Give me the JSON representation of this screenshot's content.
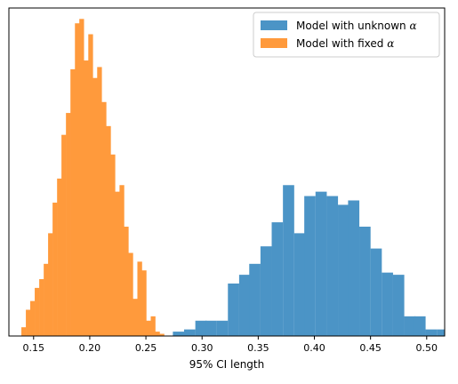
{
  "chart_data": {
    "type": "bar",
    "title": "",
    "xlabel": "95% CI length",
    "ylabel": "",
    "xlim": [
      0.128,
      0.516
    ],
    "ylim": [
      0,
      150
    ],
    "xticks": [
      0.15,
      0.2,
      0.25,
      0.3,
      0.35,
      0.4,
      0.45,
      0.5
    ],
    "xtick_labels": [
      "0.15",
      "0.20",
      "0.25",
      "0.30",
      "0.35",
      "0.40",
      "0.45",
      "0.50"
    ],
    "yticks_visible": false,
    "grid": false,
    "legend": {
      "placement": "top-right",
      "entries": [
        {
          "label_text": "Model with unknown ",
          "label_symbol": "α",
          "color": "#4b94c6"
        },
        {
          "label_text": "Model with fixed ",
          "label_symbol": "α",
          "color": "#ff9a3c"
        }
      ]
    },
    "series": [
      {
        "color": "#4b94c6",
        "bin_width": 0.0098,
        "bins": [
          {
            "x0": 0.274,
            "count": 2
          },
          {
            "x0": 0.284,
            "count": 3
          },
          {
            "x0": 0.294,
            "count": 7
          },
          {
            "x0": 0.303,
            "count": 7
          },
          {
            "x0": 0.313,
            "count": 7
          },
          {
            "x0": 0.323,
            "count": 24
          },
          {
            "x0": 0.333,
            "count": 28
          },
          {
            "x0": 0.342,
            "count": 33
          },
          {
            "x0": 0.352,
            "count": 41
          },
          {
            "x0": 0.362,
            "count": 52
          },
          {
            "x0": 0.372,
            "count": 69
          },
          {
            "x0": 0.382,
            "count": 47
          },
          {
            "x0": 0.391,
            "count": 64
          },
          {
            "x0": 0.401,
            "count": 66
          },
          {
            "x0": 0.411,
            "count": 64
          },
          {
            "x0": 0.421,
            "count": 60
          },
          {
            "x0": 0.43,
            "count": 62
          },
          {
            "x0": 0.44,
            "count": 50
          },
          {
            "x0": 0.45,
            "count": 40
          },
          {
            "x0": 0.46,
            "count": 29
          },
          {
            "x0": 0.47,
            "count": 28
          },
          {
            "x0": 0.48,
            "count": 9
          },
          {
            "x0": 0.489,
            "count": 9
          },
          {
            "x0": 0.499,
            "count": 3
          },
          {
            "x0": 0.509,
            "count": 3
          },
          {
            "x0": 0.519,
            "count": 1
          }
        ]
      },
      {
        "color": "#ff9a3c",
        "bin_width": 0.00397,
        "bins": [
          {
            "x0": 0.1391,
            "count": 4
          },
          {
            "x0": 0.1431,
            "count": 12
          },
          {
            "x0": 0.147,
            "count": 16
          },
          {
            "x0": 0.151,
            "count": 22
          },
          {
            "x0": 0.155,
            "count": 26
          },
          {
            "x0": 0.159,
            "count": 33
          },
          {
            "x0": 0.1629,
            "count": 47
          },
          {
            "x0": 0.1669,
            "count": 61
          },
          {
            "x0": 0.1709,
            "count": 72
          },
          {
            "x0": 0.1748,
            "count": 92
          },
          {
            "x0": 0.1788,
            "count": 102
          },
          {
            "x0": 0.1828,
            "count": 122
          },
          {
            "x0": 0.1868,
            "count": 143
          },
          {
            "x0": 0.1907,
            "count": 145
          },
          {
            "x0": 0.1947,
            "count": 126
          },
          {
            "x0": 0.1987,
            "count": 138
          },
          {
            "x0": 0.2026,
            "count": 118
          },
          {
            "x0": 0.2066,
            "count": 123
          },
          {
            "x0": 0.2106,
            "count": 107
          },
          {
            "x0": 0.2146,
            "count": 96
          },
          {
            "x0": 0.2185,
            "count": 83
          },
          {
            "x0": 0.2225,
            "count": 66
          },
          {
            "x0": 0.2265,
            "count": 69
          },
          {
            "x0": 0.2304,
            "count": 50
          },
          {
            "x0": 0.2344,
            "count": 38
          },
          {
            "x0": 0.2384,
            "count": 17
          },
          {
            "x0": 0.2424,
            "count": 34
          },
          {
            "x0": 0.2463,
            "count": 30
          },
          {
            "x0": 0.2503,
            "count": 7
          },
          {
            "x0": 0.2543,
            "count": 9
          },
          {
            "x0": 0.2582,
            "count": 2
          },
          {
            "x0": 0.2622,
            "count": 1
          }
        ]
      }
    ]
  }
}
